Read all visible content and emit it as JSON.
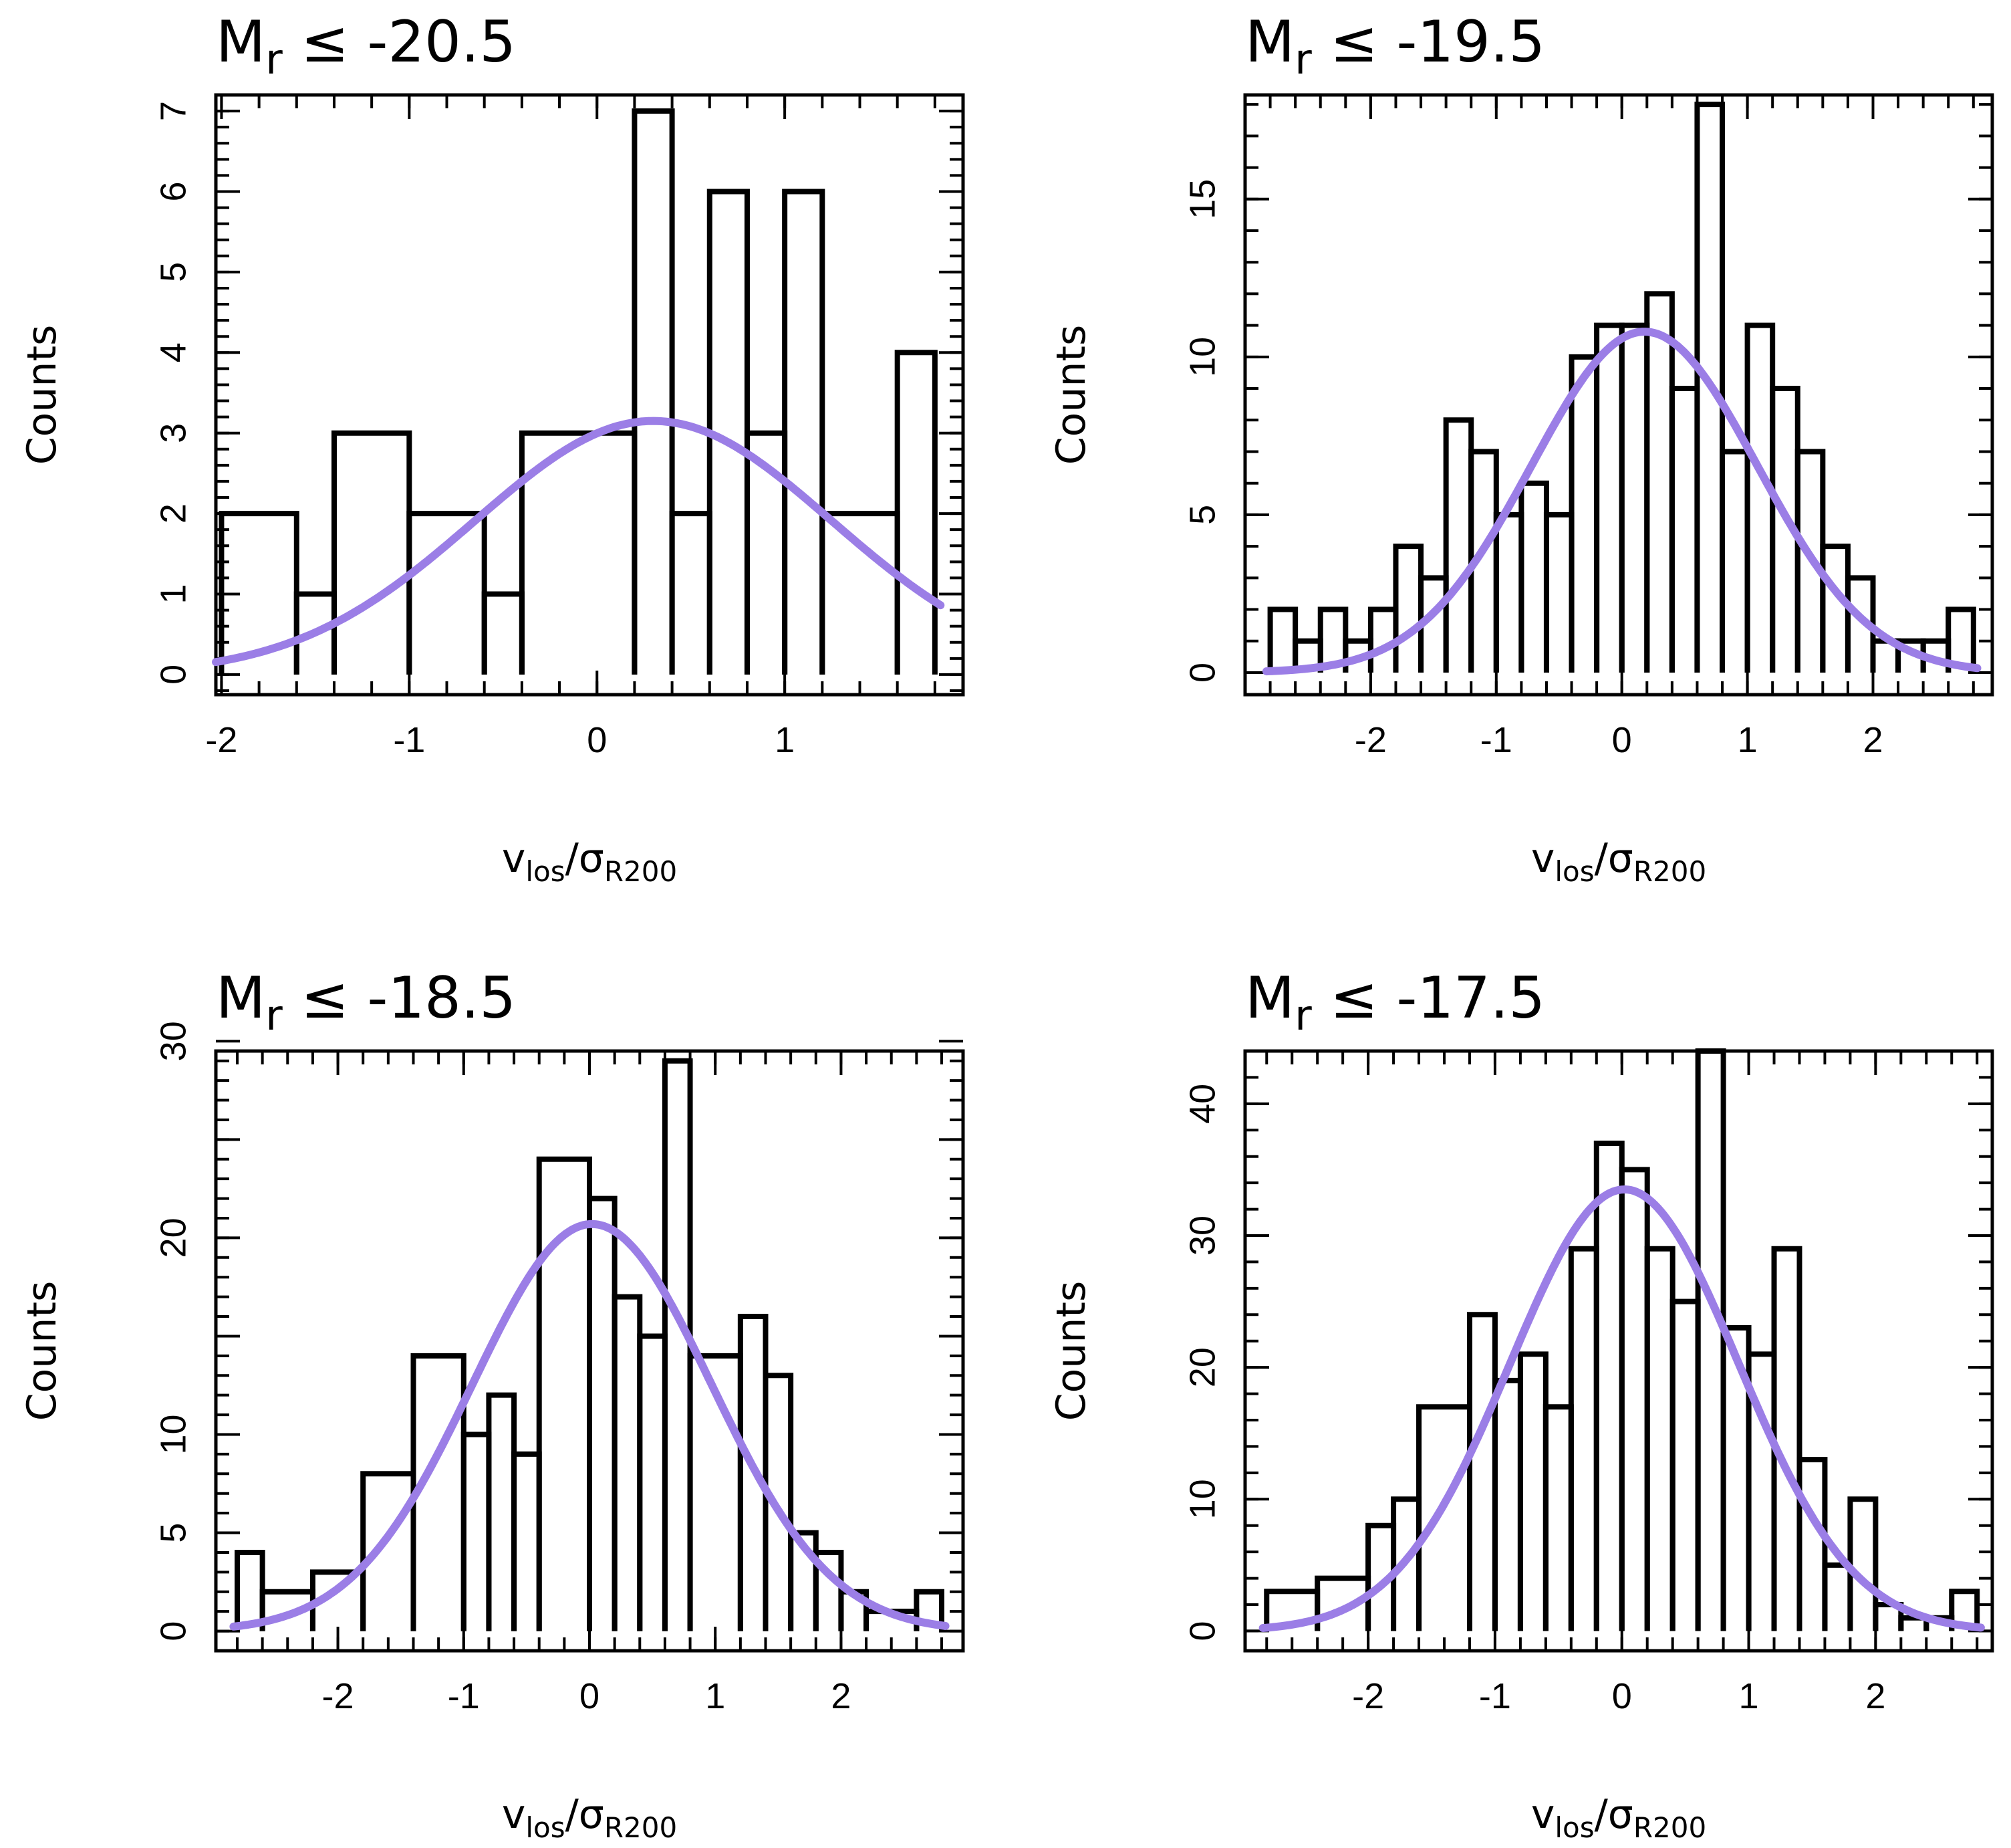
{
  "colors": {
    "histogram": "#000000",
    "fit": "#9b7ee6",
    "background": "#ffffff"
  },
  "chart_data": [
    {
      "type": "bar",
      "title": {
        "base": "M",
        "sub": "r",
        "rest": " ≤ -20.5"
      },
      "xlabel": {
        "base": "v",
        "sub1": "los",
        "slash": "/σ",
        "sub2": "R200"
      },
      "ylabel": "Counts",
      "xlim": [
        -2.03,
        1.95
      ],
      "ylim": [
        -0.25,
        7.2
      ],
      "xticks": [
        -2,
        -1,
        0,
        1
      ],
      "xtick_labels": [
        "-2",
        "-1",
        "0",
        "1"
      ],
      "yticks": [
        0,
        1,
        2,
        3,
        4,
        5,
        6,
        7
      ],
      "ytick_labels": [
        "0",
        "1",
        "2",
        "3",
        "4",
        "5",
        "6",
        "7"
      ],
      "minor_step": 0.2,
      "bin_edges": [
        -2.0,
        -1.6,
        -1.4,
        -1.0,
        -0.6,
        -0.4,
        0.2,
        0.4,
        0.6,
        0.8,
        1.0,
        1.2,
        1.6,
        1.8
      ],
      "counts": [
        2,
        1,
        3,
        2,
        1,
        3,
        7,
        2,
        6,
        3,
        6,
        2,
        4
      ],
      "fit": {
        "amplitude": 3.15,
        "mean": 0.3,
        "sigma": 0.95
      }
    },
    {
      "type": "bar",
      "title": {
        "base": "M",
        "sub": "r",
        "rest": " ≤ -19.5"
      },
      "xlabel": {
        "base": "v",
        "sub1": "los",
        "slash": "/σ",
        "sub2": "R200"
      },
      "ylabel": "Counts",
      "xlim": [
        -3.0,
        2.95
      ],
      "ylim": [
        -0.7,
        18.3
      ],
      "xticks": [
        -2,
        -1,
        0,
        1,
        2
      ],
      "xtick_labels": [
        "-2",
        "-1",
        "0",
        "1",
        "2"
      ],
      "yticks": [
        0,
        5,
        10,
        15
      ],
      "ytick_labels": [
        "0",
        "5",
        "10",
        "15"
      ],
      "minor_step": 0.2,
      "bin_edges": [
        -2.8,
        -2.6,
        -2.4,
        -2.2,
        -2.0,
        -1.8,
        -1.6,
        -1.4,
        -1.2,
        -1.0,
        -0.8,
        -0.6,
        -0.4,
        -0.2,
        0.0,
        0.2,
        0.4,
        0.6,
        0.8,
        1.0,
        1.2,
        1.4,
        1.6,
        1.8,
        2.0,
        2.2,
        2.4,
        2.6,
        2.8
      ],
      "counts": [
        2,
        1,
        2,
        1,
        2,
        4,
        3,
        8,
        7,
        5,
        6,
        5,
        10,
        11,
        11,
        12,
        9,
        18,
        7,
        11,
        9,
        7,
        4,
        3,
        1,
        1,
        1,
        2
      ],
      "fit": {
        "amplitude": 10.8,
        "mean": 0.18,
        "sigma": 0.9
      }
    },
    {
      "type": "bar",
      "title": {
        "base": "M",
        "sub": "r",
        "rest": " ≤ -18.5"
      },
      "xlabel": {
        "base": "v",
        "sub1": "los",
        "slash": "/σ",
        "sub2": "R200"
      },
      "ylabel": "Counts",
      "xlim": [
        -2.97,
        2.97
      ],
      "ylim": [
        -1.0,
        29.5
      ],
      "xticks": [
        -2,
        -1,
        0,
        1,
        2
      ],
      "xtick_labels": [
        "-2",
        "-1",
        "0",
        "1",
        "2"
      ],
      "yticks": [
        0,
        5,
        10,
        15,
        20,
        25,
        30
      ],
      "ytick_labels": [
        "0",
        "5",
        "10",
        "",
        "20",
        "",
        "30"
      ],
      "minor_step": 0.2,
      "bin_edges": [
        -2.8,
        -2.6,
        -2.2,
        -1.8,
        -1.4,
        -1.0,
        -0.8,
        -0.6,
        -0.4,
        0.0,
        0.2,
        0.4,
        0.6,
        0.8,
        1.2,
        1.4,
        1.6,
        1.8,
        2.0,
        2.2,
        2.6,
        2.8
      ],
      "counts": [
        4,
        2,
        3,
        8,
        14,
        10,
        12,
        9,
        24,
        22,
        17,
        15,
        29,
        14,
        16,
        13,
        5,
        4,
        2,
        1,
        2
      ],
      "fit": {
        "amplitude": 20.7,
        "mean": 0.02,
        "sigma": 0.95
      }
    },
    {
      "type": "bar",
      "title": {
        "base": "M",
        "sub": "r",
        "rest": " ≤ -17.5"
      },
      "xlabel": {
        "base": "v",
        "sub1": "los",
        "slash": "/σ",
        "sub2": "R200"
      },
      "ylabel": "Counts",
      "xlim": [
        -2.97,
        2.92
      ],
      "ylim": [
        -1.5,
        44.0
      ],
      "xticks": [
        -2,
        -1,
        0,
        1,
        2
      ],
      "xtick_labels": [
        "-2",
        "-1",
        "0",
        "1",
        "2"
      ],
      "yticks": [
        0,
        10,
        20,
        30,
        40
      ],
      "ytick_labels": [
        "0",
        "10",
        "20",
        "30",
        "40"
      ],
      "minor_step": 0.2,
      "bin_edges": [
        -2.8,
        -2.4,
        -2.0,
        -1.8,
        -1.6,
        -1.2,
        -1.0,
        -0.8,
        -0.6,
        -0.4,
        -0.2,
        0.0,
        0.2,
        0.4,
        0.6,
        0.8,
        1.0,
        1.2,
        1.4,
        1.6,
        1.8,
        2.0,
        2.2,
        2.4,
        2.6,
        2.8
      ],
      "counts": [
        3,
        4,
        8,
        10,
        17,
        24,
        19,
        21,
        17,
        29,
        37,
        35,
        29,
        25,
        44,
        23,
        21,
        29,
        13,
        5,
        10,
        2,
        1,
        1,
        3
      ],
      "fit": {
        "amplitude": 33.5,
        "mean": 0.02,
        "sigma": 0.9
      }
    }
  ]
}
